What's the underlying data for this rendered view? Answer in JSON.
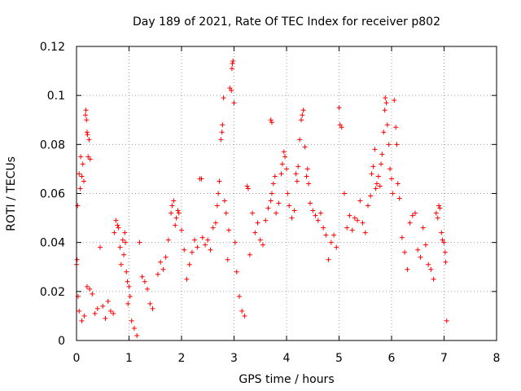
{
  "chart_data": {
    "type": "scatter",
    "title": "Day 189 of 2021, Rate Of TEC Index for receiver p802",
    "xlabel": "GPS time / hours",
    "ylabel": "ROTI / TECUs",
    "xlim": [
      0,
      8
    ],
    "ylim": [
      0,
      0.12
    ],
    "grid": true,
    "marker": "+",
    "marker_color": "#ff0000",
    "x_ticks": [
      {
        "value": 0,
        "label": "0"
      },
      {
        "value": 1,
        "label": "1"
      },
      {
        "value": 2,
        "label": "2"
      },
      {
        "value": 3,
        "label": "3"
      },
      {
        "value": 4,
        "label": "4"
      },
      {
        "value": 5,
        "label": "5"
      },
      {
        "value": 6,
        "label": "6"
      },
      {
        "value": 7,
        "label": "7"
      },
      {
        "value": 8,
        "label": "8"
      }
    ],
    "y_ticks": [
      {
        "value": 0,
        "label": "0"
      },
      {
        "value": 0.02,
        "label": "0.02"
      },
      {
        "value": 0.04,
        "label": "0.04"
      },
      {
        "value": 0.06,
        "label": "0.06"
      },
      {
        "value": 0.08,
        "label": "0.08"
      },
      {
        "value": 0.1,
        "label": "0.1"
      },
      {
        "value": 0.12,
        "label": "0.12"
      }
    ],
    "series": [
      {
        "name": "ROTI",
        "points": [
          [
            0.0,
            0.031
          ],
          [
            0.01,
            0.033
          ],
          [
            0.02,
            0.055
          ],
          [
            0.03,
            0.018
          ],
          [
            0.05,
            0.068
          ],
          [
            0.07,
            0.062
          ],
          [
            0.08,
            0.075
          ],
          [
            0.1,
            0.067
          ],
          [
            0.12,
            0.072
          ],
          [
            0.14,
            0.065
          ],
          [
            0.17,
            0.092
          ],
          [
            0.18,
            0.094
          ],
          [
            0.19,
            0.09
          ],
          [
            0.2,
            0.085
          ],
          [
            0.21,
            0.084
          ],
          [
            0.22,
            0.075
          ],
          [
            0.24,
            0.082
          ],
          [
            0.26,
            0.074
          ],
          [
            0.2,
            0.022
          ],
          [
            0.25,
            0.021
          ],
          [
            0.05,
            0.012
          ],
          [
            0.1,
            0.008
          ],
          [
            0.15,
            0.01
          ],
          [
            0.3,
            0.019
          ],
          [
            0.35,
            0.011
          ],
          [
            0.4,
            0.013
          ],
          [
            0.45,
            0.038
          ],
          [
            0.5,
            0.014
          ],
          [
            0.55,
            0.009
          ],
          [
            0.6,
            0.016
          ],
          [
            0.65,
            0.012
          ],
          [
            0.7,
            0.011
          ],
          [
            0.72,
            0.044
          ],
          [
            0.75,
            0.049
          ],
          [
            0.78,
            0.047
          ],
          [
            0.8,
            0.046
          ],
          [
            0.83,
            0.038
          ],
          [
            0.85,
            0.031
          ],
          [
            0.88,
            0.041
          ],
          [
            0.9,
            0.035
          ],
          [
            0.92,
            0.044
          ],
          [
            0.93,
            0.04
          ],
          [
            0.95,
            0.028
          ],
          [
            0.97,
            0.024
          ],
          [
            0.98,
            0.015
          ],
          [
            1.0,
            0.022
          ],
          [
            1.02,
            0.018
          ],
          [
            1.05,
            0.008
          ],
          [
            1.1,
            0.005
          ],
          [
            1.15,
            0.002
          ],
          [
            1.2,
            0.04
          ],
          [
            1.25,
            0.026
          ],
          [
            1.3,
            0.024
          ],
          [
            1.35,
            0.021
          ],
          [
            1.4,
            0.015
          ],
          [
            1.45,
            0.013
          ],
          [
            1.55,
            0.027
          ],
          [
            1.6,
            0.032
          ],
          [
            1.65,
            0.029
          ],
          [
            1.7,
            0.034
          ],
          [
            1.75,
            0.041
          ],
          [
            1.8,
            0.052
          ],
          [
            1.82,
            0.055
          ],
          [
            1.85,
            0.057
          ],
          [
            1.88,
            0.047
          ],
          [
            1.9,
            0.05
          ],
          [
            1.93,
            0.053
          ],
          [
            1.95,
            0.052
          ],
          [
            2.0,
            0.045
          ],
          [
            2.05,
            0.037
          ],
          [
            2.1,
            0.025
          ],
          [
            2.15,
            0.031
          ],
          [
            2.2,
            0.036
          ],
          [
            2.25,
            0.041
          ],
          [
            2.3,
            0.038
          ],
          [
            2.35,
            0.066
          ],
          [
            2.38,
            0.066
          ],
          [
            2.4,
            0.042
          ],
          [
            2.45,
            0.039
          ],
          [
            2.5,
            0.041
          ],
          [
            2.55,
            0.037
          ],
          [
            2.6,
            0.046
          ],
          [
            2.65,
            0.048
          ],
          [
            2.68,
            0.055
          ],
          [
            2.7,
            0.06
          ],
          [
            2.72,
            0.065
          ],
          [
            2.75,
            0.082
          ],
          [
            2.77,
            0.085
          ],
          [
            2.78,
            0.088
          ],
          [
            2.8,
            0.099
          ],
          [
            2.82,
            0.057
          ],
          [
            2.85,
            0.052
          ],
          [
            2.88,
            0.033
          ],
          [
            2.9,
            0.045
          ],
          [
            2.92,
            0.103
          ],
          [
            2.95,
            0.102
          ],
          [
            2.96,
            0.111
          ],
          [
            2.97,
            0.113
          ],
          [
            2.98,
            0.114
          ],
          [
            3.0,
            0.097
          ],
          [
            3.02,
            0.04
          ],
          [
            3.05,
            0.028
          ],
          [
            3.1,
            0.018
          ],
          [
            3.15,
            0.012
          ],
          [
            3.2,
            0.01
          ],
          [
            3.25,
            0.063
          ],
          [
            3.27,
            0.062
          ],
          [
            3.3,
            0.035
          ],
          [
            3.35,
            0.052
          ],
          [
            3.4,
            0.044
          ],
          [
            3.45,
            0.048
          ],
          [
            3.5,
            0.041
          ],
          [
            3.55,
            0.039
          ],
          [
            3.6,
            0.049
          ],
          [
            3.65,
            0.054
          ],
          [
            3.7,
            0.057
          ],
          [
            3.72,
            0.06
          ],
          [
            3.75,
            0.064
          ],
          [
            3.78,
            0.067
          ],
          [
            3.7,
            0.09
          ],
          [
            3.72,
            0.089
          ],
          [
            3.8,
            0.052
          ],
          [
            3.85,
            0.056
          ],
          [
            3.9,
            0.068
          ],
          [
            3.92,
            0.072
          ],
          [
            3.95,
            0.077
          ],
          [
            3.97,
            0.075
          ],
          [
            4.0,
            0.07
          ],
          [
            4.02,
            0.06
          ],
          [
            4.05,
            0.055
          ],
          [
            4.1,
            0.05
          ],
          [
            4.15,
            0.053
          ],
          [
            4.18,
            0.068
          ],
          [
            4.2,
            0.065
          ],
          [
            4.22,
            0.071
          ],
          [
            4.25,
            0.082
          ],
          [
            4.28,
            0.09
          ],
          [
            4.3,
            0.092
          ],
          [
            4.32,
            0.094
          ],
          [
            4.35,
            0.079
          ],
          [
            4.38,
            0.067
          ],
          [
            4.4,
            0.07
          ],
          [
            4.42,
            0.064
          ],
          [
            4.45,
            0.056
          ],
          [
            4.5,
            0.053
          ],
          [
            4.55,
            0.051
          ],
          [
            4.6,
            0.049
          ],
          [
            4.65,
            0.052
          ],
          [
            4.7,
            0.046
          ],
          [
            4.75,
            0.043
          ],
          [
            4.8,
            0.033
          ],
          [
            4.85,
            0.04
          ],
          [
            4.9,
            0.043
          ],
          [
            4.95,
            0.038
          ],
          [
            5.0,
            0.095
          ],
          [
            5.02,
            0.088
          ],
          [
            5.05,
            0.087
          ],
          [
            5.1,
            0.06
          ],
          [
            5.15,
            0.046
          ],
          [
            5.2,
            0.051
          ],
          [
            5.25,
            0.045
          ],
          [
            5.3,
            0.05
          ],
          [
            5.35,
            0.049
          ],
          [
            5.4,
            0.057
          ],
          [
            5.45,
            0.048
          ],
          [
            5.5,
            0.044
          ],
          [
            5.55,
            0.055
          ],
          [
            5.6,
            0.059
          ],
          [
            5.62,
            0.068
          ],
          [
            5.65,
            0.071
          ],
          [
            5.68,
            0.078
          ],
          [
            5.7,
            0.062
          ],
          [
            5.72,
            0.064
          ],
          [
            5.75,
            0.067
          ],
          [
            5.78,
            0.063
          ],
          [
            5.8,
            0.072
          ],
          [
            5.82,
            0.076
          ],
          [
            5.85,
            0.085
          ],
          [
            5.87,
            0.094
          ],
          [
            5.88,
            0.099
          ],
          [
            5.9,
            0.097
          ],
          [
            5.92,
            0.088
          ],
          [
            5.95,
            0.08
          ],
          [
            5.97,
            0.07
          ],
          [
            6.0,
            0.066
          ],
          [
            6.02,
            0.06
          ],
          [
            6.05,
            0.098
          ],
          [
            6.08,
            0.087
          ],
          [
            6.1,
            0.08
          ],
          [
            6.12,
            0.064
          ],
          [
            6.15,
            0.058
          ],
          [
            6.2,
            0.042
          ],
          [
            6.25,
            0.036
          ],
          [
            6.3,
            0.029
          ],
          [
            6.35,
            0.048
          ],
          [
            6.4,
            0.051
          ],
          [
            6.45,
            0.052
          ],
          [
            6.5,
            0.037
          ],
          [
            6.55,
            0.034
          ],
          [
            6.6,
            0.046
          ],
          [
            6.65,
            0.039
          ],
          [
            6.7,
            0.031
          ],
          [
            6.75,
            0.029
          ],
          [
            6.8,
            0.025
          ],
          [
            6.85,
            0.052
          ],
          [
            6.88,
            0.05
          ],
          [
            6.9,
            0.055
          ],
          [
            6.92,
            0.054
          ],
          [
            6.95,
            0.044
          ],
          [
            6.97,
            0.041
          ],
          [
            7.0,
            0.04
          ],
          [
            7.02,
            0.036
          ],
          [
            7.03,
            0.032
          ],
          [
            7.05,
            0.008
          ]
        ]
      }
    ]
  }
}
